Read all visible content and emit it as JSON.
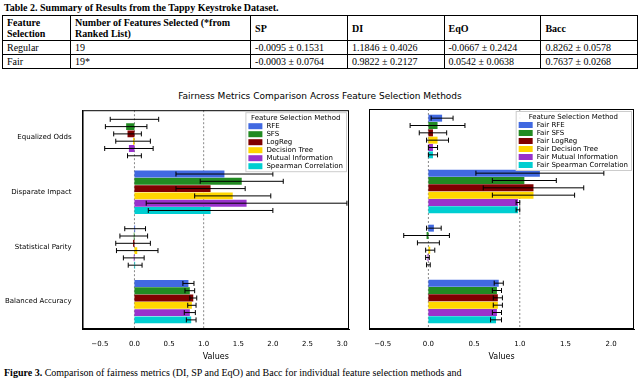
{
  "table": {
    "caption": "Table 2. Summary of Results from the Tappy Keystroke Dataset.",
    "header": [
      "Feature Selection",
      "Number of Features Selected (*from Ranked List)",
      "SP",
      "DI",
      "EqO",
      "Bacc"
    ],
    "rows": [
      [
        "Regular",
        "19",
        "-0.0095 ± 0.1531",
        "1.1846 ± 0.4026",
        "-0.0667 ± 0.2424",
        "0.8262 ± 0.0578"
      ],
      [
        "Fair",
        "19*",
        "-0.0003 ± 0.0764",
        "0.9822 ± 0.2127",
        "0.0542 ± 0.0638",
        "0.7637 ± 0.0268"
      ]
    ]
  },
  "figure_title": "Fairness Metrics Comparison Across Feature Selection Methods",
  "chart_data": [
    {
      "type": "bar",
      "orientation": "horizontal",
      "grid": false,
      "legend": "upper right",
      "legend_title": "Feature Selection Method",
      "xlabel": "Values",
      "categories": [
        "Equalized Odds",
        "Disparate Impact",
        "Statistical Parity",
        "Balanced Accuracy"
      ],
      "xlim": [
        -0.75,
        3.1
      ],
      "xticks": [
        {
          "value": -0.5,
          "label": "−0.5"
        },
        {
          "value": 0,
          "label": "0.0"
        },
        {
          "value": 0.5,
          "label": "0.5"
        },
        {
          "value": 1,
          "label": "1.0"
        },
        {
          "value": 1.5,
          "label": "1.5"
        },
        {
          "value": 2,
          "label": "2.0"
        },
        {
          "value": 2.5,
          "label": "2.5"
        },
        {
          "value": 3,
          "label": "3.0"
        }
      ],
      "reference_lines": [
        0,
        1
      ],
      "series": [
        {
          "name": "RFE",
          "color": "#4169e1",
          "values": [
            0.0,
            1.3,
            0.01,
            0.78
          ],
          "errors": [
            0.35,
            0.7,
            0.15,
            0.08
          ]
        },
        {
          "name": "SFS",
          "color": "#228b22",
          "values": [
            -0.12,
            1.55,
            -0.01,
            0.8
          ],
          "errors": [
            0.3,
            0.6,
            0.2,
            0.07
          ]
        },
        {
          "name": "LogReg",
          "color": "#800000",
          "values": [
            -0.1,
            1.1,
            -0.02,
            0.85
          ],
          "errors": [
            0.2,
            0.5,
            0.25,
            0.05
          ]
        },
        {
          "name": "Decision Tree",
          "color": "#ffd700",
          "values": [
            -0.02,
            1.42,
            0.04,
            0.83
          ],
          "errors": [
            0.25,
            0.55,
            0.3,
            0.06
          ]
        },
        {
          "name": "Mutual Information",
          "color": "#9932cc",
          "values": [
            -0.08,
            1.62,
            -0.01,
            0.8
          ],
          "errors": [
            0.35,
            1.45,
            0.15,
            0.08
          ]
        },
        {
          "name": "Spearman Correlation",
          "color": "#00ced1",
          "values": [
            0.0,
            1.1,
            0.01,
            0.82
          ],
          "errors": [
            0.1,
            0.9,
            0.1,
            0.07
          ]
        }
      ]
    },
    {
      "type": "bar",
      "orientation": "horizontal",
      "grid": false,
      "legend": "upper right",
      "tick_labels": "x",
      "legend_title": "Feature Selection Method",
      "xlabel": "Values",
      "categories": [
        "Equalized Odds",
        "Disparate Impact",
        "Statistical Parity",
        "Balanced Accuracy"
      ],
      "xlim": [
        -0.65,
        2.25
      ],
      "xticks": [
        {
          "value": -0.5,
          "label": "−0.5"
        },
        {
          "value": 0,
          "label": "0.0"
        },
        {
          "value": 0.5,
          "label": "0.5"
        },
        {
          "value": 1,
          "label": "1.0"
        },
        {
          "value": 1.5,
          "label": "1.5"
        },
        {
          "value": 2,
          "label": "2.0"
        }
      ],
      "reference_lines": [
        0,
        1
      ],
      "series": [
        {
          "name": "Fair RFE",
          "color": "#4169e1",
          "values": [
            0.15,
            1.22,
            0.06,
            0.77
          ],
          "errors": [
            0.12,
            0.7,
            0.08,
            0.05
          ]
        },
        {
          "name": "Fair SFS",
          "color": "#228b22",
          "values": [
            0.1,
            1.05,
            -0.02,
            0.75
          ],
          "errors": [
            0.3,
            0.35,
            0.25,
            0.05
          ]
        },
        {
          "name": "Fair LogReg",
          "color": "#800000",
          "values": [
            0.05,
            1.15,
            0.0,
            0.76
          ],
          "errors": [
            0.15,
            0.55,
            0.12,
            0.05
          ]
        },
        {
          "name": "Fair Decision Tree",
          "color": "#ffd700",
          "values": [
            0.1,
            1.15,
            0.02,
            0.76
          ],
          "errors": [
            0.12,
            0.45,
            0.05,
            0.05
          ]
        },
        {
          "name": "Fair Mutual Information",
          "color": "#9932cc",
          "values": [
            0.05,
            0.98,
            -0.01,
            0.75
          ],
          "errors": [
            0.05,
            0.02,
            0.02,
            0.05
          ]
        },
        {
          "name": "Fair Spearman Correlation",
          "color": "#00ced1",
          "values": [
            0.05,
            0.98,
            0.0,
            0.74
          ],
          "errors": [
            0.05,
            0.02,
            0.02,
            0.06
          ]
        }
      ]
    }
  ],
  "caption": {
    "label": "Figure 3.",
    "text": "Comparison of fairness metrics (DI, SP and EqO) and Bacc for individual feature selection methods and"
  }
}
